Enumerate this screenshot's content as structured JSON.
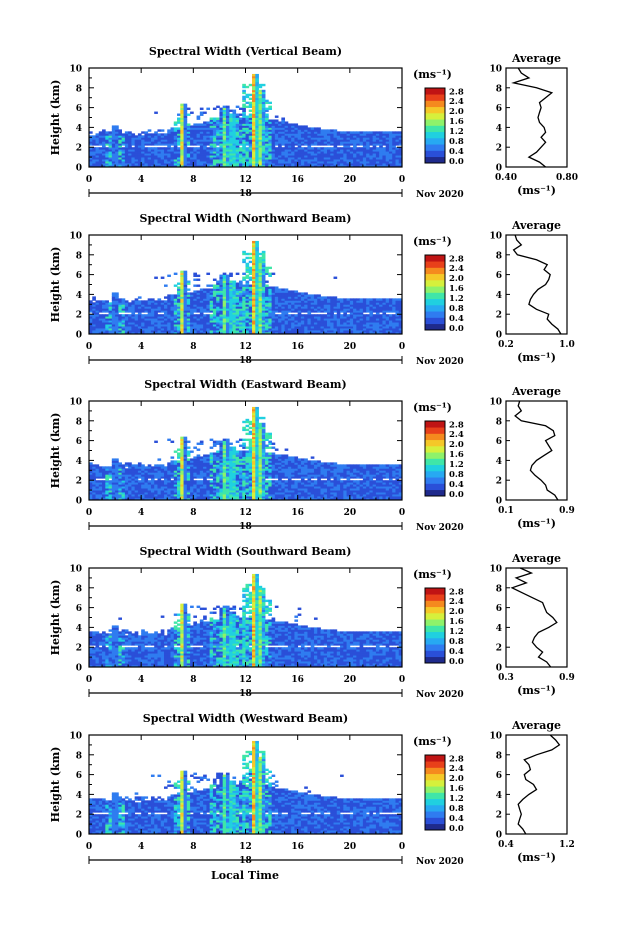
{
  "figure": {
    "xlabel": "Local Time",
    "date_day": "18",
    "date_month": "Nov 2020",
    "colorbar_unit": "(ms⁻¹)",
    "colorbar_ticks": [
      "0.0",
      "0.4",
      "0.8",
      "1.2",
      "1.6",
      "2.0",
      "2.4",
      "2.8"
    ],
    "colormap": [
      "#1f2a8c",
      "#2a4fd8",
      "#2f7cf0",
      "#27a9f2",
      "#20d0e0",
      "#3fe6a8",
      "#8ef26a",
      "#d6f03c",
      "#f5c828",
      "#f58a1e",
      "#e8401a",
      "#c01414"
    ]
  },
  "chart_data": [
    {
      "type": "heatmap",
      "title": "Spectral Width (Vertical Beam)",
      "ylabel": "Height (km)",
      "xlim": [
        0,
        24
      ],
      "ylim": [
        0,
        10
      ],
      "xticks": [
        "0",
        "4",
        "8",
        "12",
        "16",
        "20",
        "0"
      ],
      "yticks": [
        "0",
        "2",
        "4",
        "6",
        "8",
        "10"
      ],
      "zlim": [
        0,
        3.0
      ],
      "profile": {
        "title": "Average",
        "xlabel": "(ms⁻¹)",
        "xlim": [
          0.4,
          0.8
        ],
        "xticks": [
          "0.40",
          "0.80"
        ],
        "heights": [
          0.0,
          0.5,
          1.0,
          1.5,
          2.0,
          2.5,
          3.0,
          3.5,
          4.0,
          4.5,
          5.0,
          5.5,
          6.0,
          6.5,
          7.0,
          7.5,
          8.0,
          8.5,
          9.0,
          9.5,
          10.0
        ],
        "values": [
          0.66,
          0.62,
          0.55,
          0.6,
          0.63,
          0.66,
          0.63,
          0.66,
          0.65,
          0.62,
          0.61,
          0.62,
          0.63,
          0.62,
          0.66,
          0.7,
          0.6,
          0.45,
          0.55,
          0.5,
          0.48
        ]
      }
    },
    {
      "type": "heatmap",
      "title": "Spectral Width (Northward Beam)",
      "ylabel": "Height (km)",
      "xlim": [
        0,
        24
      ],
      "ylim": [
        0,
        10
      ],
      "xticks": [
        "0",
        "4",
        "8",
        "12",
        "16",
        "20",
        "0"
      ],
      "yticks": [
        "0",
        "2",
        "4",
        "6",
        "8",
        "10"
      ],
      "zlim": [
        0,
        3.0
      ],
      "profile": {
        "title": "Average",
        "xlabel": "(ms⁻¹)",
        "xlim": [
          0.2,
          1.0
        ],
        "xticks": [
          "0.2",
          "1.0"
        ],
        "heights": [
          0.0,
          0.5,
          1.0,
          1.5,
          2.0,
          2.5,
          3.0,
          3.5,
          4.0,
          4.5,
          5.0,
          5.5,
          6.0,
          6.5,
          7.0,
          7.5,
          8.0,
          8.5,
          9.0,
          9.5,
          10.0
        ],
        "values": [
          0.92,
          0.88,
          0.8,
          0.74,
          0.76,
          0.6,
          0.5,
          0.52,
          0.56,
          0.62,
          0.72,
          0.76,
          0.78,
          0.7,
          0.74,
          0.6,
          0.35,
          0.3,
          0.4,
          0.34,
          0.32
        ]
      }
    },
    {
      "type": "heatmap",
      "title": "Spectral Width (Eastward Beam)",
      "ylabel": "Height (km)",
      "xlim": [
        0,
        24
      ],
      "ylim": [
        0,
        10
      ],
      "xticks": [
        "0",
        "4",
        "8",
        "12",
        "16",
        "20",
        "0"
      ],
      "yticks": [
        "0",
        "2",
        "4",
        "6",
        "8",
        "10"
      ],
      "zlim": [
        0,
        3.0
      ],
      "profile": {
        "title": "Average",
        "xlabel": "(ms⁻¹)",
        "xlim": [
          0.1,
          0.9
        ],
        "xticks": [
          "0.1",
          "0.9"
        ],
        "heights": [
          0.0,
          0.5,
          1.0,
          1.5,
          2.0,
          2.5,
          3.0,
          3.5,
          4.0,
          4.5,
          5.0,
          5.5,
          6.0,
          6.5,
          7.0,
          7.5,
          8.0,
          8.5,
          9.0,
          9.5,
          10.0
        ],
        "values": [
          0.78,
          0.74,
          0.64,
          0.62,
          0.56,
          0.48,
          0.42,
          0.44,
          0.5,
          0.6,
          0.7,
          0.66,
          0.62,
          0.74,
          0.72,
          0.62,
          0.3,
          0.22,
          0.3,
          0.26,
          0.28
        ]
      }
    },
    {
      "type": "heatmap",
      "title": "Spectral Width (Southward Beam)",
      "ylabel": "Height (km)",
      "xlim": [
        0,
        24
      ],
      "ylim": [
        0,
        10
      ],
      "xticks": [
        "0",
        "4",
        "8",
        "12",
        "16",
        "20",
        "0"
      ],
      "yticks": [
        "0",
        "2",
        "4",
        "6",
        "8",
        "10"
      ],
      "zlim": [
        0,
        3.0
      ],
      "profile": {
        "title": "Average",
        "xlabel": "(ms⁻¹)",
        "xlim": [
          0.3,
          0.9
        ],
        "xticks": [
          "0.3",
          "0.9"
        ],
        "heights": [
          0.0,
          0.5,
          1.0,
          1.5,
          2.0,
          2.5,
          3.0,
          3.5,
          4.0,
          4.5,
          5.0,
          5.5,
          6.0,
          6.5,
          7.0,
          7.5,
          8.0,
          8.5,
          9.0,
          9.5,
          10.0
        ],
        "values": [
          0.74,
          0.7,
          0.62,
          0.66,
          0.6,
          0.56,
          0.58,
          0.62,
          0.72,
          0.8,
          0.76,
          0.7,
          0.68,
          0.66,
          0.56,
          0.46,
          0.36,
          0.5,
          0.4,
          0.55,
          0.44
        ]
      }
    },
    {
      "type": "heatmap",
      "title": "Spectral Width (Westward Beam)",
      "ylabel": "Height (km)",
      "xlim": [
        0,
        24
      ],
      "ylim": [
        0,
        10
      ],
      "xticks": [
        "0",
        "4",
        "8",
        "12",
        "16",
        "20",
        "0"
      ],
      "yticks": [
        "0",
        "2",
        "4",
        "6",
        "8",
        "10"
      ],
      "zlim": [
        0,
        3.0
      ],
      "profile": {
        "title": "Average",
        "xlabel": "(ms⁻¹)",
        "xlim": [
          0.4,
          1.2
        ],
        "xticks": [
          "0.4",
          "1.2"
        ],
        "heights": [
          0.0,
          0.5,
          1.0,
          1.5,
          2.0,
          2.5,
          3.0,
          3.5,
          4.0,
          4.5,
          5.0,
          5.5,
          6.0,
          6.5,
          7.0,
          7.5,
          8.0,
          8.5,
          9.0,
          9.5,
          10.0
        ],
        "values": [
          0.66,
          0.62,
          0.56,
          0.58,
          0.6,
          0.58,
          0.56,
          0.62,
          0.7,
          0.8,
          0.76,
          0.66,
          0.64,
          0.72,
          0.7,
          0.64,
          0.8,
          1.0,
          1.1,
          1.05,
          0.98
        ]
      }
    }
  ]
}
